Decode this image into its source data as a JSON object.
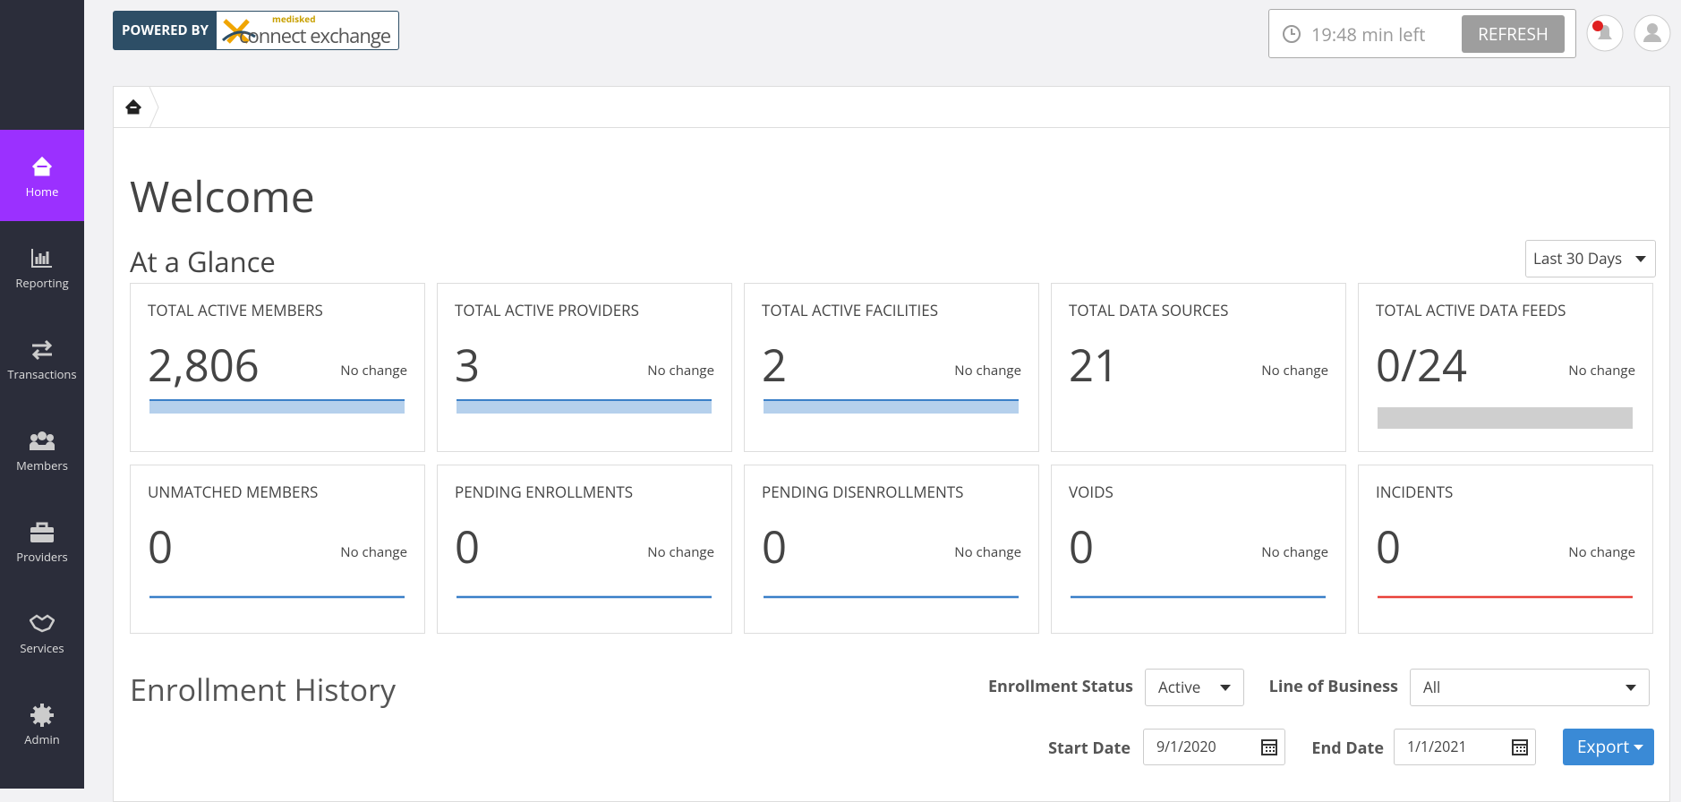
{
  "header": {
    "powered_by": "POWERED BY",
    "logo_small": "medisked",
    "logo": "connect exchange",
    "timer": "19:48 min left",
    "refresh": "REFRESH"
  },
  "sidebar": [
    "Home",
    "Reporting",
    "Transactions",
    "Members",
    "Providers",
    "Services",
    "Admin"
  ],
  "page": {
    "title": "Welcome",
    "section": "At a Glance",
    "range": "Last 30 Days"
  },
  "cards": [
    {
      "title": "TOTAL ACTIVE MEMBERS",
      "value": "2,806",
      "change": "No change"
    },
    {
      "title": "TOTAL ACTIVE PROVIDERS",
      "value": 3,
      "change": "No change"
    },
    {
      "title": "TOTAL ACTIVE FACILITIES",
      "value": 2,
      "change": "No change"
    },
    {
      "title": "TOTAL DATA SOURCES",
      "value": 21,
      "change": "No change"
    },
    {
      "title": "TOTAL ACTIVE DATA FEEDS",
      "value": "0/24",
      "change": "No change"
    },
    {
      "title": "UNMATCHED MEMBERS",
      "value": 0,
      "change": "No change"
    },
    {
      "title": "PENDING ENROLLMENTS",
      "value": 0,
      "change": "No change"
    },
    {
      "title": "PENDING DISENROLLMENTS",
      "value": 0,
      "change": "No change"
    },
    {
      "title": "VOIDS",
      "value": 0,
      "change": "No change"
    },
    {
      "title": "INCIDENTS",
      "value": 0,
      "change": "No change"
    }
  ],
  "enrollment": {
    "title": "Enrollment History",
    "status_label": "Enrollment Status",
    "status": "Active",
    "lob_label": "Line of Business",
    "lob": "All",
    "start_label": "Start Date",
    "start": "9/1/2020",
    "end_label": "End Date",
    "end": "1/1/2021",
    "export": "Export"
  }
}
